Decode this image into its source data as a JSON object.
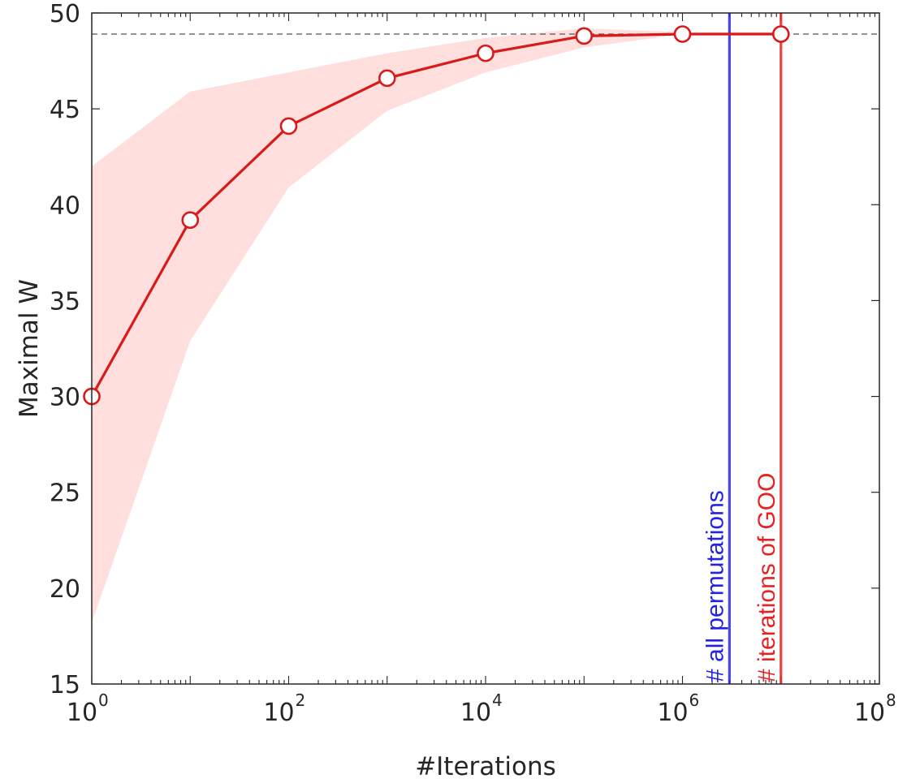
{
  "chart_data": {
    "type": "line",
    "x_scale": "log10",
    "xlim": [
      1,
      100000000
    ],
    "ylim": [
      15,
      50
    ],
    "xlabel": "#Iterations",
    "ylabel": "Maximal W",
    "x_tick_labels": [
      {
        "value": 1,
        "base": "10",
        "exp": "0"
      },
      {
        "value": 100,
        "base": "10",
        "exp": "2"
      },
      {
        "value": 10000,
        "base": "10",
        "exp": "4"
      },
      {
        "value": 1000000,
        "base": "10",
        "exp": "6"
      },
      {
        "value": 100000000,
        "base": "10",
        "exp": "8"
      }
    ],
    "y_ticks": [
      15,
      20,
      25,
      30,
      35,
      40,
      45,
      50
    ],
    "y_tick_labels": [
      "15",
      "20",
      "25",
      "30",
      "35",
      "40",
      "45",
      "50"
    ],
    "series": [
      {
        "name": "Maximal W",
        "color": "#d91a1a",
        "x": [
          1,
          10,
          100,
          1000,
          10000,
          100000,
          1000000,
          10000000
        ],
        "y": [
          30.0,
          39.2,
          44.1,
          46.6,
          47.9,
          48.8,
          48.9,
          48.9
        ]
      }
    ],
    "band": {
      "color": "#ffdede",
      "x": [
        1,
        10,
        100,
        1000,
        10000,
        100000,
        1000000,
        10000000
      ],
      "upper": [
        42.0,
        45.9,
        46.9,
        47.9,
        48.7,
        49.2,
        49.0,
        49.0
      ],
      "lower": [
        18.2,
        32.9,
        40.9,
        44.9,
        46.9,
        48.2,
        48.9,
        48.9
      ]
    },
    "reference_line": {
      "y": 48.9,
      "style": "dashed",
      "color": "#555555"
    },
    "vertical_lines": [
      {
        "x": 3000000,
        "label": "# all permutations",
        "color": "#2323e6"
      },
      {
        "x": 10000000,
        "label": "# iterations of GOO",
        "color": "#e62323"
      }
    ]
  }
}
